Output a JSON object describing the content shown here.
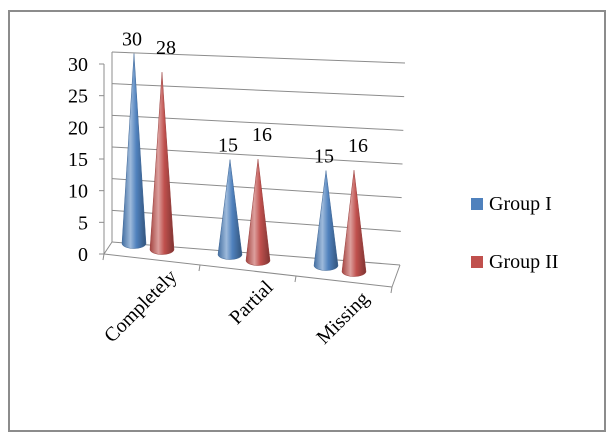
{
  "chart_data": {
    "type": "bar",
    "style": "3d-cone",
    "categories": [
      "Completely",
      "Partial",
      "Missing"
    ],
    "series": [
      {
        "name": "Group I",
        "values": [
          30,
          15,
          15
        ],
        "color": "#4F81BD"
      },
      {
        "name": "Group II",
        "values": [
          28,
          16,
          16
        ],
        "color": "#C0504D"
      }
    ],
    "yticks": [
      "0",
      "5",
      "10",
      "15",
      "20",
      "25",
      "30"
    ],
    "ylim": [
      0,
      30
    ],
    "title": "",
    "xlabel": "",
    "ylabel": "",
    "grid": true,
    "legend_position": "right"
  }
}
